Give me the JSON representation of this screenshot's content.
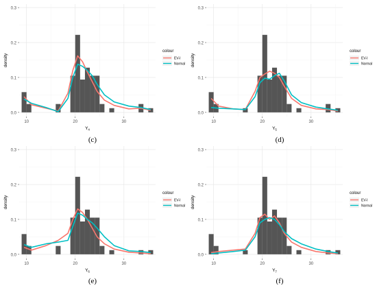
{
  "chart_data": [
    {
      "type": "bar",
      "panel_label": "(c)",
      "ylabel": "density",
      "xlabel_base": "Y",
      "xlabel_sub": "4",
      "xlim": [
        8.5,
        36.5
      ],
      "ylim": [
        -0.012,
        0.31
      ],
      "x_ticks": [
        10,
        20,
        30
      ],
      "y_ticks": [
        0.0,
        0.1,
        0.2,
        0.3
      ],
      "y_tick_labels": [
        "0.0",
        "0.1",
        "0.2",
        "0.3"
      ],
      "grid": true,
      "legend_placement": "right",
      "legend_title": "colour",
      "bin_width": 1,
      "histogram": [
        {
          "x": 9.5,
          "value": 0.058
        },
        {
          "x": 10.5,
          "value": 0.024
        },
        {
          "x": 16.5,
          "value": 0.024
        },
        {
          "x": 19.5,
          "value": 0.105
        },
        {
          "x": 20.5,
          "value": 0.222
        },
        {
          "x": 21.5,
          "value": 0.094
        },
        {
          "x": 22.5,
          "value": 0.128
        },
        {
          "x": 23.5,
          "value": 0.105
        },
        {
          "x": 24.5,
          "value": 0.105
        },
        {
          "x": 25.5,
          "value": 0.024
        },
        {
          "x": 27.5,
          "value": 0.012
        },
        {
          "x": 33.5,
          "value": 0.024
        },
        {
          "x": 35.5,
          "value": 0.012
        }
      ],
      "series": [
        {
          "name": "EV-I",
          "color": "#F8766D",
          "points": [
            [
              9.5,
              0.045
            ],
            [
              11,
              0.022
            ],
            [
              14,
              0.012
            ],
            [
              16.5,
              0.004
            ],
            [
              18.5,
              0.055
            ],
            [
              19.5,
              0.12
            ],
            [
              20.5,
              0.162
            ],
            [
              21.5,
              0.145
            ],
            [
              22.5,
              0.115
            ],
            [
              23.5,
              0.088
            ],
            [
              24.5,
              0.06
            ],
            [
              26,
              0.035
            ],
            [
              28,
              0.02
            ],
            [
              31,
              0.01
            ],
            [
              33.5,
              0.012
            ],
            [
              35.5,
              0.006
            ]
          ]
        },
        {
          "name": "Normal",
          "color": "#00BFC4",
          "points": [
            [
              9.5,
              0.038
            ],
            [
              11,
              0.026
            ],
            [
              14,
              0.014
            ],
            [
              16.5,
              0.002
            ],
            [
              18.5,
              0.04
            ],
            [
              19.5,
              0.1
            ],
            [
              20.5,
              0.138
            ],
            [
              21.5,
              0.132
            ],
            [
              22.5,
              0.12
            ],
            [
              23.5,
              0.105
            ],
            [
              24.5,
              0.08
            ],
            [
              26,
              0.05
            ],
            [
              28,
              0.03
            ],
            [
              31,
              0.018
            ],
            [
              33.5,
              0.014
            ],
            [
              35.5,
              0.008
            ]
          ]
        }
      ]
    },
    {
      "type": "bar",
      "panel_label": "(d)",
      "ylabel": "density",
      "xlabel_base": "Y",
      "xlabel_sub": "5",
      "xlim": [
        8.5,
        36.5
      ],
      "ylim": [
        -0.012,
        0.31
      ],
      "x_ticks": [
        10,
        20,
        30
      ],
      "y_ticks": [
        0.0,
        0.1,
        0.2,
        0.3
      ],
      "y_tick_labels": [
        "0.0",
        "0.1",
        "0.2",
        "0.3"
      ],
      "grid": true,
      "legend_placement": "right",
      "legend_title": "colour",
      "bin_width": 1,
      "histogram": [
        {
          "x": 9.5,
          "value": 0.058
        },
        {
          "x": 10.5,
          "value": 0.024
        },
        {
          "x": 16.5,
          "value": 0.012
        },
        {
          "x": 19.5,
          "value": 0.105
        },
        {
          "x": 20.5,
          "value": 0.222
        },
        {
          "x": 21.5,
          "value": 0.094
        },
        {
          "x": 22.5,
          "value": 0.128
        },
        {
          "x": 23.5,
          "value": 0.105
        },
        {
          "x": 24.5,
          "value": 0.105
        },
        {
          "x": 25.5,
          "value": 0.024
        },
        {
          "x": 27.5,
          "value": 0.012
        },
        {
          "x": 33.5,
          "value": 0.024
        },
        {
          "x": 35.5,
          "value": 0.012
        }
      ],
      "series": [
        {
          "name": "EV-I",
          "color": "#F8766D",
          "points": [
            [
              9.5,
              0.04
            ],
            [
              11,
              0.018
            ],
            [
              14,
              0.01
            ],
            [
              16.5,
              0.008
            ],
            [
              18.5,
              0.06
            ],
            [
              19.5,
              0.1
            ],
            [
              20.5,
              0.11
            ],
            [
              21.5,
              0.118
            ],
            [
              22.5,
              0.112
            ],
            [
              23.5,
              0.1
            ],
            [
              24.5,
              0.075
            ],
            [
              26,
              0.04
            ],
            [
              28,
              0.02
            ],
            [
              31,
              0.01
            ],
            [
              33.5,
              0.008
            ],
            [
              35.5,
              0.004
            ]
          ]
        },
        {
          "name": "Normal",
          "color": "#00BFC4",
          "points": [
            [
              9.5,
              0.014
            ],
            [
              11,
              0.012
            ],
            [
              14,
              0.01
            ],
            [
              16.5,
              0.008
            ],
            [
              18.5,
              0.045
            ],
            [
              19.5,
              0.085
            ],
            [
              20.5,
              0.098
            ],
            [
              21.5,
              0.095
            ],
            [
              22.5,
              0.105
            ],
            [
              23.5,
              0.112
            ],
            [
              24.5,
              0.09
            ],
            [
              26,
              0.05
            ],
            [
              28,
              0.028
            ],
            [
              31,
              0.015
            ],
            [
              33.5,
              0.01
            ],
            [
              35.5,
              0.006
            ]
          ]
        }
      ]
    },
    {
      "type": "bar",
      "panel_label": "(e)",
      "ylabel": "density",
      "xlabel_base": "Y",
      "xlabel_sub": "6",
      "xlim": [
        8.5,
        36.5
      ],
      "ylim": [
        -0.012,
        0.31
      ],
      "x_ticks": [
        10,
        20,
        30
      ],
      "y_ticks": [
        0.0,
        0.1,
        0.2,
        0.3
      ],
      "y_tick_labels": [
        "0.0",
        "0.1",
        "0.2",
        "0.3"
      ],
      "grid": true,
      "legend_placement": "right",
      "legend_title": "colour",
      "bin_width": 1,
      "histogram": [
        {
          "x": 9.5,
          "value": 0.058
        },
        {
          "x": 10.5,
          "value": 0.024
        },
        {
          "x": 16.5,
          "value": 0.024
        },
        {
          "x": 19.5,
          "value": 0.105
        },
        {
          "x": 20.5,
          "value": 0.222
        },
        {
          "x": 21.5,
          "value": 0.094
        },
        {
          "x": 22.5,
          "value": 0.128
        },
        {
          "x": 23.5,
          "value": 0.105
        },
        {
          "x": 24.5,
          "value": 0.105
        },
        {
          "x": 25.5,
          "value": 0.024
        },
        {
          "x": 27.5,
          "value": 0.012
        },
        {
          "x": 33.5,
          "value": 0.012
        },
        {
          "x": 35.5,
          "value": 0.012
        }
      ],
      "series": [
        {
          "name": "EV-I",
          "color": "#F8766D",
          "points": [
            [
              9.5,
              0.02
            ],
            [
              11,
              0.012
            ],
            [
              14,
              0.025
            ],
            [
              16.5,
              0.04
            ],
            [
              18.5,
              0.06
            ],
            [
              19.5,
              0.1
            ],
            [
              20.5,
              0.13
            ],
            [
              21.5,
              0.12
            ],
            [
              22.5,
              0.1
            ],
            [
              23.5,
              0.075
            ],
            [
              24.5,
              0.05
            ],
            [
              26,
              0.03
            ],
            [
              28,
              0.015
            ],
            [
              31,
              0.006
            ],
            [
              33.5,
              0.004
            ],
            [
              35.5,
              0.002
            ]
          ]
        },
        {
          "name": "Normal",
          "color": "#00BFC4",
          "points": [
            [
              9.5,
              0.028
            ],
            [
              11,
              0.02
            ],
            [
              14,
              0.03
            ],
            [
              16.5,
              0.035
            ],
            [
              18.5,
              0.04
            ],
            [
              19.5,
              0.08
            ],
            [
              20.5,
              0.118
            ],
            [
              21.5,
              0.112
            ],
            [
              22.5,
              0.1
            ],
            [
              23.5,
              0.09
            ],
            [
              24.5,
              0.075
            ],
            [
              26,
              0.05
            ],
            [
              28,
              0.025
            ],
            [
              31,
              0.01
            ],
            [
              33.5,
              0.008
            ],
            [
              35.5,
              0.005
            ]
          ]
        }
      ]
    },
    {
      "type": "bar",
      "panel_label": "(f)",
      "ylabel": "density",
      "xlabel_base": "Y",
      "xlabel_sub": "7",
      "xlim": [
        8.5,
        36.5
      ],
      "ylim": [
        -0.012,
        0.31
      ],
      "x_ticks": [
        10,
        20,
        30
      ],
      "y_ticks": [
        0.0,
        0.1,
        0.2,
        0.3
      ],
      "y_tick_labels": [
        "0.0",
        "0.1",
        "0.2",
        "0.3"
      ],
      "grid": true,
      "legend_placement": "right",
      "legend_title": "colour",
      "bin_width": 1,
      "histogram": [
        {
          "x": 9.5,
          "value": 0.058
        },
        {
          "x": 10.5,
          "value": 0.024
        },
        {
          "x": 16.5,
          "value": 0.012
        },
        {
          "x": 19.5,
          "value": 0.105
        },
        {
          "x": 20.5,
          "value": 0.222
        },
        {
          "x": 21.5,
          "value": 0.094
        },
        {
          "x": 22.5,
          "value": 0.128
        },
        {
          "x": 23.5,
          "value": 0.105
        },
        {
          "x": 24.5,
          "value": 0.105
        },
        {
          "x": 25.5,
          "value": 0.024
        },
        {
          "x": 27.5,
          "value": 0.012
        },
        {
          "x": 33.5,
          "value": 0.012
        },
        {
          "x": 35.5,
          "value": 0.012
        }
      ],
      "series": [
        {
          "name": "EV-I",
          "color": "#F8766D",
          "points": [
            [
              9.5,
              0.005
            ],
            [
              11,
              0.008
            ],
            [
              14,
              0.012
            ],
            [
              16.5,
              0.015
            ],
            [
              18.5,
              0.06
            ],
            [
              19.5,
              0.105
            ],
            [
              20.5,
              0.115
            ],
            [
              21.5,
              0.1
            ],
            [
              22.5,
              0.11
            ],
            [
              23.5,
              0.09
            ],
            [
              24.5,
              0.06
            ],
            [
              26,
              0.035
            ],
            [
              28,
              0.02
            ],
            [
              31,
              0.008
            ],
            [
              33.5,
              0.004
            ],
            [
              35.5,
              0.002
            ]
          ]
        },
        {
          "name": "Normal",
          "color": "#00BFC4",
          "points": [
            [
              9.5,
              0.002
            ],
            [
              11,
              0.004
            ],
            [
              14,
              0.008
            ],
            [
              16.5,
              0.012
            ],
            [
              18.5,
              0.05
            ],
            [
              19.5,
              0.09
            ],
            [
              20.5,
              0.1
            ],
            [
              21.5,
              0.105
            ],
            [
              22.5,
              0.1
            ],
            [
              23.5,
              0.085
            ],
            [
              24.5,
              0.065
            ],
            [
              26,
              0.045
            ],
            [
              28,
              0.03
            ],
            [
              31,
              0.015
            ],
            [
              33.5,
              0.008
            ],
            [
              35.5,
              0.004
            ]
          ]
        }
      ]
    }
  ]
}
